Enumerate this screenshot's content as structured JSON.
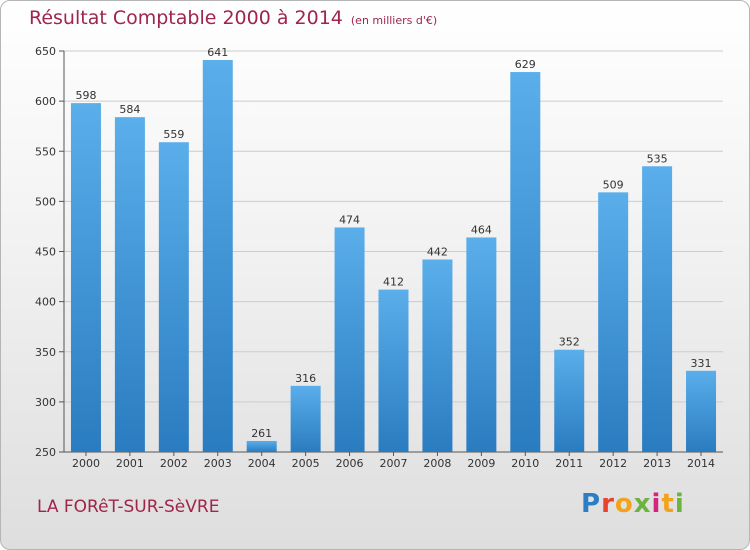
{
  "chart_data": {
    "type": "bar",
    "title": "Résultat Comptable 2000 à 2014",
    "subtitle": "(en milliers d'€)",
    "categories": [
      "2000",
      "2001",
      "2002",
      "2003",
      "2004",
      "2005",
      "2006",
      "2007",
      "2008",
      "2009",
      "2010",
      "2011",
      "2012",
      "2013",
      "2014"
    ],
    "values": [
      598,
      584,
      559,
      641,
      261,
      316,
      474,
      412,
      442,
      464,
      629,
      352,
      509,
      535,
      331
    ],
    "ylim": [
      250,
      650
    ],
    "yticks": [
      250,
      300,
      350,
      400,
      450,
      500,
      550,
      600,
      650
    ],
    "grid": true,
    "bar_color_top": "#5aaeea",
    "bar_color_bottom": "#2a7cc0"
  },
  "footer": {
    "place_name": "LA FORêT-SUR-SèVRE",
    "brand": "Proxiti",
    "brand_letters": [
      "P",
      "r",
      "o",
      "x",
      "i",
      "t",
      "i"
    ]
  },
  "colors": {
    "title": "#a0254b",
    "grid": "#cccccc"
  }
}
